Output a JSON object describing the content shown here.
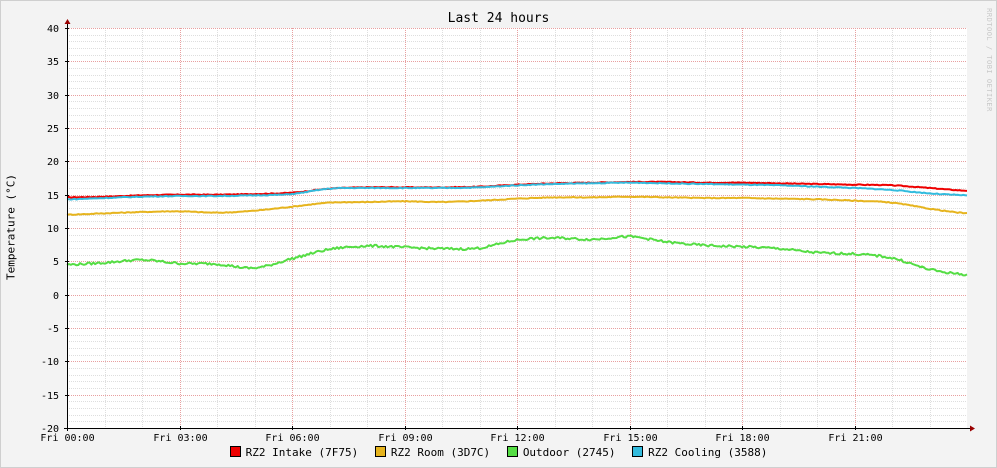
{
  "watermark": "RRDTOOL / TOBI OETIKER",
  "chart_data": {
    "type": "line",
    "title": "Last 24 hours",
    "ylabel": "Temperature (°C)",
    "xlabel": "",
    "ylim": [
      -20,
      40
    ],
    "y_ticks": [
      -20,
      -15,
      -10,
      -5,
      0,
      5,
      10,
      15,
      20,
      25,
      30,
      35,
      40
    ],
    "xlim": [
      0,
      24
    ],
    "x_ticks": [
      0,
      3,
      6,
      9,
      12,
      15,
      18,
      21
    ],
    "x_tick_labels": [
      "Fri 00:00",
      "Fri 03:00",
      "Fri 06:00",
      "Fri 09:00",
      "Fri 12:00",
      "Fri 15:00",
      "Fri 18:00",
      "Fri 21:00"
    ],
    "grid": true,
    "legend_position": "bottom",
    "x": [
      0,
      1,
      2,
      3,
      4,
      5,
      6,
      7,
      8,
      9,
      10,
      11,
      12,
      13,
      14,
      15,
      16,
      17,
      18,
      19,
      20,
      21,
      22,
      23,
      24
    ],
    "series": [
      {
        "name": "RZ2 Intake (7F75)",
        "color": "#ee0000",
        "values": [
          14.6,
          14.7,
          14.9,
          15.0,
          15.0,
          15.1,
          15.3,
          15.9,
          16.1,
          16.1,
          16.1,
          16.2,
          16.5,
          16.7,
          16.8,
          16.9,
          16.9,
          16.8,
          16.8,
          16.7,
          16.6,
          16.5,
          16.4,
          16.0,
          15.6
        ]
      },
      {
        "name": "RZ2 Room (3D7C)",
        "color": "#e6b41e",
        "values": [
          12.0,
          12.2,
          12.4,
          12.5,
          12.3,
          12.6,
          13.2,
          13.8,
          13.9,
          14.0,
          13.9,
          14.1,
          14.4,
          14.6,
          14.6,
          14.7,
          14.6,
          14.5,
          14.5,
          14.4,
          14.3,
          14.1,
          13.8,
          12.9,
          12.2
        ]
      },
      {
        "name": "Outdoor (2745)",
        "color": "#55dd44",
        "values": [
          4.5,
          4.8,
          5.2,
          4.7,
          4.6,
          4.0,
          5.4,
          6.8,
          7.3,
          7.1,
          6.9,
          7.0,
          8.2,
          8.5,
          8.3,
          8.7,
          7.9,
          7.4,
          7.2,
          6.9,
          6.3,
          6.1,
          5.5,
          3.8,
          3.0
        ]
      },
      {
        "name": "RZ2 Cooling (3588)",
        "color": "#33bbdd",
        "values": [
          14.3,
          14.5,
          14.7,
          14.8,
          14.8,
          14.9,
          15.1,
          15.9,
          16.0,
          16.0,
          16.0,
          16.1,
          16.4,
          16.6,
          16.7,
          16.8,
          16.7,
          16.6,
          16.5,
          16.4,
          16.2,
          16.0,
          15.7,
          15.2,
          14.9
        ]
      }
    ]
  },
  "legend_items": [
    {
      "label": "RZ2 Intake (7F75)",
      "color": "#ee0000"
    },
    {
      "label": "RZ2 Room (3D7C)",
      "color": "#e6b41e"
    },
    {
      "label": "Outdoor (2745)",
      "color": "#55dd44"
    },
    {
      "label": "RZ2 Cooling (3588)",
      "color": "#33bbdd"
    }
  ]
}
